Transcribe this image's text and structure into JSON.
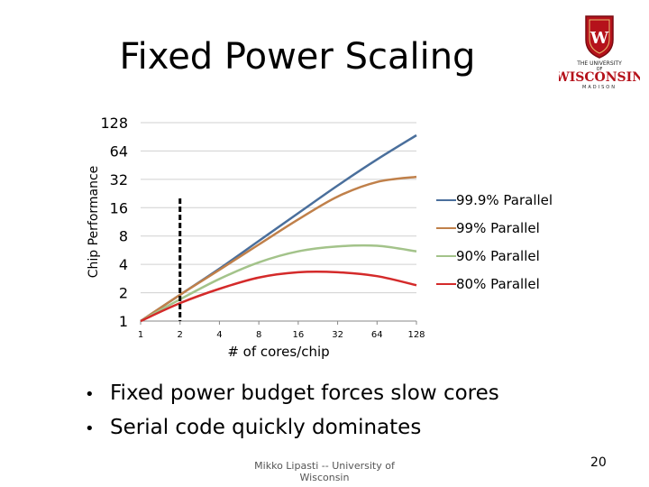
{
  "slide": {
    "title": "Fixed Power Scaling",
    "bullets": [
      "Fixed power budget forces slow cores",
      "Serial code quickly dominates"
    ],
    "footer": "Mikko Lipasti -- University of Wisconsin",
    "page_number": "20",
    "logo": {
      "line1": "THE UNIVERSITY",
      "line2": "OF",
      "line3": "WISCONSIN",
      "line4": "MADISON",
      "emblem": "W"
    }
  },
  "chart_data": {
    "type": "line",
    "title": "",
    "xlabel": "# of cores/chip",
    "ylabel": "Chip Performance",
    "x_scale": "log2",
    "y_scale": "log2",
    "x": [
      1,
      2,
      4,
      8,
      16,
      32,
      64,
      128
    ],
    "x_ticks": [
      "1",
      "2",
      "4",
      "8",
      "16",
      "32",
      "64",
      "128"
    ],
    "y_ticks": [
      "1",
      "2",
      "4",
      "8",
      "16",
      "32",
      "64",
      "128"
    ],
    "xlim": [
      1,
      128
    ],
    "ylim": [
      1,
      128
    ],
    "grid": true,
    "legend_position": "right",
    "marker_line": {
      "x": 2,
      "style": "dashed"
    },
    "series": [
      {
        "name": "99.9% Parallel",
        "color": "#4a6f9c",
        "values": [
          1,
          1.9,
          3.6,
          7.1,
          14.0,
          27.5,
          52.0,
          94.0
        ]
      },
      {
        "name": "99% Parallel",
        "color": "#c0804a",
        "values": [
          1,
          1.9,
          3.5,
          6.5,
          12.0,
          21.0,
          30.0,
          34.0
        ]
      },
      {
        "name": "90% Parallel",
        "color": "#a3c38a",
        "values": [
          1,
          1.7,
          2.8,
          4.2,
          5.5,
          6.2,
          6.3,
          5.5
        ]
      },
      {
        "name": "80% Parallel",
        "color": "#d42a2a",
        "values": [
          1,
          1.55,
          2.2,
          2.9,
          3.3,
          3.3,
          3.0,
          2.4
        ]
      }
    ]
  }
}
